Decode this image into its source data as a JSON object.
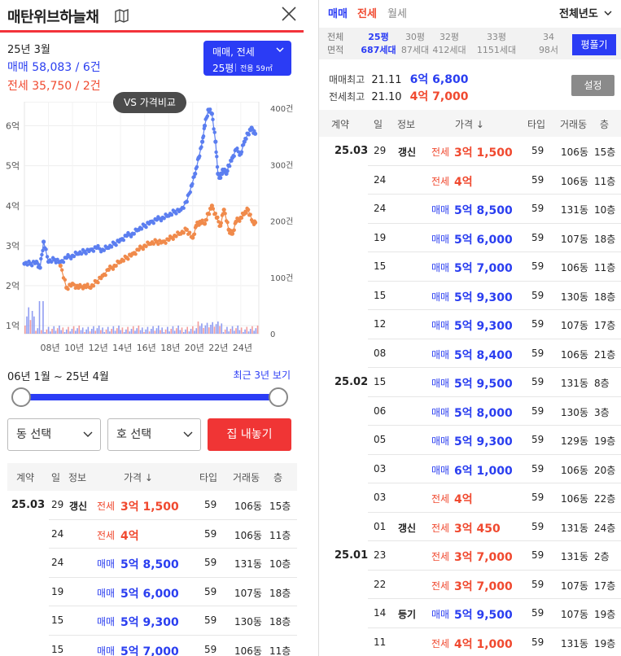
{
  "header": {
    "title": "매탄위브하늘채"
  },
  "summary": {
    "year_month": "25년 3월",
    "sale": "매매 58,083 / 6건",
    "rent": "전세 35,750 / 2건"
  },
  "selector": {
    "type": "매매, 전세",
    "pyeong": "25평",
    "area": "전용 59㎡"
  },
  "compare_button": "VS 가격비교",
  "chart_data": {
    "type": "line",
    "x_ticks": [
      "08년",
      "10년",
      "12년",
      "14년",
      "16년",
      "18년",
      "20년",
      "22년",
      "24년"
    ],
    "y_ticks": [
      "1억",
      "2억",
      "3억",
      "4억",
      "5억",
      "6억"
    ],
    "y2_ticks": [
      "0",
      "100건",
      "200건",
      "300건",
      "400건"
    ],
    "ylim": [
      0.8,
      6.6
    ],
    "y2lim": [
      0,
      400
    ],
    "series": [
      {
        "name": "매매",
        "color": "#5b7ef0",
        "x": [
          2006.0,
          2006.5,
          2007.0,
          2007.3,
          2007.6,
          2008.0,
          2008.5,
          2009.0,
          2009.5,
          2010.0,
          2010.5,
          2011.0,
          2011.5,
          2012.0,
          2012.5,
          2013.0,
          2013.5,
          2014.0,
          2014.5,
          2015.0,
          2015.5,
          2016.0,
          2016.5,
          2017.0,
          2017.5,
          2018.0,
          2018.5,
          2019.0,
          2019.5,
          2019.9,
          2020.2,
          2020.5,
          2020.8,
          2021.0,
          2021.3,
          2021.6,
          2021.9,
          2022.1,
          2022.3,
          2022.5,
          2022.8,
          2023.0,
          2023.3,
          2023.6,
          2024.0,
          2024.3,
          2024.6,
          2024.9,
          2025.2
        ],
        "y": [
          2.55,
          2.55,
          2.6,
          2.45,
          3.1,
          2.6,
          2.65,
          2.6,
          2.7,
          2.75,
          2.8,
          2.85,
          2.9,
          2.95,
          2.9,
          2.95,
          3.05,
          3.15,
          3.25,
          3.3,
          3.4,
          3.5,
          3.6,
          3.65,
          3.7,
          3.75,
          3.85,
          3.9,
          4.1,
          4.5,
          4.8,
          5.2,
          5.6,
          6.0,
          6.4,
          6.3,
          5.6,
          4.8,
          4.7,
          4.9,
          4.8,
          5.0,
          5.2,
          5.4,
          5.3,
          5.6,
          5.8,
          5.95,
          5.8
        ]
      },
      {
        "name": "전세",
        "color": "#f08a4b",
        "x": [
          2009.0,
          2009.5,
          2010.0,
          2010.5,
          2011.0,
          2011.5,
          2012.0,
          2012.5,
          2013.0,
          2013.5,
          2014.0,
          2014.5,
          2015.0,
          2015.5,
          2016.0,
          2016.5,
          2017.0,
          2017.5,
          2018.0,
          2018.5,
          2019.0,
          2019.5,
          2020.0,
          2020.3,
          2020.6,
          2021.0,
          2021.3,
          2021.6,
          2022.0,
          2022.3,
          2022.6,
          2023.0,
          2023.3,
          2023.6,
          2024.0,
          2024.3,
          2024.6,
          2025.0,
          2025.2
        ],
        "y": [
          2.5,
          1.95,
          2.05,
          1.95,
          2.0,
          1.95,
          2.1,
          2.25,
          2.4,
          2.5,
          2.6,
          2.7,
          2.8,
          2.9,
          3.0,
          3.05,
          3.1,
          3.1,
          3.15,
          3.25,
          3.3,
          3.4,
          3.2,
          3.5,
          3.6,
          3.55,
          3.8,
          4.0,
          3.7,
          3.5,
          3.9,
          3.4,
          3.3,
          3.6,
          3.7,
          3.8,
          3.9,
          3.6,
          3.58
        ]
      }
    ]
  },
  "range": {
    "label": "06년 1월 ~ 25년 4월",
    "recent": "최근 3년 보기"
  },
  "filters": {
    "dong": "동 선택",
    "ho": "호 선택",
    "list_btn": "집 내놓기"
  },
  "table_headers": {
    "contract": "계약",
    "day": "일",
    "info": "정보",
    "price": "가격 ↓",
    "type": "타입",
    "dong": "거래동",
    "floor": "층"
  },
  "left_rows": [
    {
      "month": "25.03",
      "day": "29",
      "info": "갱신",
      "kind": "전세",
      "price": "3억 1,500",
      "type": "59",
      "dong": "106동",
      "floor": "15층"
    },
    {
      "month": "",
      "day": "24",
      "info": "",
      "kind": "전세",
      "price": "4억",
      "type": "59",
      "dong": "106동",
      "floor": "11층"
    },
    {
      "month": "",
      "day": "24",
      "info": "",
      "kind": "매매",
      "price": "5억 8,500",
      "type": "59",
      "dong": "131동",
      "floor": "10층"
    },
    {
      "month": "",
      "day": "19",
      "info": "",
      "kind": "매매",
      "price": "5억 6,000",
      "type": "59",
      "dong": "107동",
      "floor": "18층"
    },
    {
      "month": "",
      "day": "15",
      "info": "",
      "kind": "매매",
      "price": "5억 9,300",
      "type": "59",
      "dong": "130동",
      "floor": "18층"
    },
    {
      "month": "",
      "day": "15",
      "info": "",
      "kind": "매매",
      "price": "5억 7,000",
      "type": "59",
      "dong": "106동",
      "floor": "11층"
    }
  ],
  "right": {
    "tabs": [
      "매매",
      "전세",
      "월세"
    ],
    "year_filter": "전체년도",
    "info_labels": [
      "전체",
      "면적"
    ],
    "info_cols": [
      {
        "top": "25평",
        "bottom": "687세대",
        "active": true
      },
      {
        "top": "30평",
        "bottom": "87세대",
        "active": false
      },
      {
        "top": "32평",
        "bottom": "412세대",
        "active": false
      },
      {
        "top": "33평",
        "bottom": "1151세대",
        "active": false
      },
      {
        "top": "34",
        "bottom": "98서",
        "active": false
      }
    ],
    "pyeong_btn": "평풀기",
    "sale_max_label": "매매최고",
    "sale_max_date": "21.11",
    "sale_max_price": "6억 6,800",
    "rent_max_label": "전세최고",
    "rent_max_date": "21.10",
    "rent_max_price": "4억 7,000",
    "settings_btn": "설정",
    "rows": [
      {
        "month": "25.03",
        "day": "29",
        "info": "갱신",
        "kind": "전세",
        "price": "3억 1,500",
        "type": "59",
        "dong": "106동",
        "floor": "15층"
      },
      {
        "month": "",
        "day": "24",
        "info": "",
        "kind": "전세",
        "price": "4억",
        "type": "59",
        "dong": "106동",
        "floor": "11층"
      },
      {
        "month": "",
        "day": "24",
        "info": "",
        "kind": "매매",
        "price": "5억 8,500",
        "type": "59",
        "dong": "131동",
        "floor": "10층"
      },
      {
        "month": "",
        "day": "19",
        "info": "",
        "kind": "매매",
        "price": "5억 6,000",
        "type": "59",
        "dong": "107동",
        "floor": "18층"
      },
      {
        "month": "",
        "day": "15",
        "info": "",
        "kind": "매매",
        "price": "5억 7,000",
        "type": "59",
        "dong": "106동",
        "floor": "11층"
      },
      {
        "month": "",
        "day": "15",
        "info": "",
        "kind": "매매",
        "price": "5억 9,300",
        "type": "59",
        "dong": "130동",
        "floor": "18층"
      },
      {
        "month": "",
        "day": "12",
        "info": "",
        "kind": "매매",
        "price": "5억 9,300",
        "type": "59",
        "dong": "107동",
        "floor": "17층"
      },
      {
        "month": "",
        "day": "08",
        "info": "",
        "kind": "매매",
        "price": "5억 8,400",
        "type": "59",
        "dong": "106동",
        "floor": "21층"
      },
      {
        "month": "25.02",
        "day": "15",
        "info": "",
        "kind": "매매",
        "price": "5억 9,500",
        "type": "59",
        "dong": "131동",
        "floor": "8층"
      },
      {
        "month": "",
        "day": "06",
        "info": "",
        "kind": "매매",
        "price": "5억 8,000",
        "type": "59",
        "dong": "130동",
        "floor": "3층"
      },
      {
        "month": "",
        "day": "05",
        "info": "",
        "kind": "매매",
        "price": "5억 9,300",
        "type": "59",
        "dong": "129동",
        "floor": "19층"
      },
      {
        "month": "",
        "day": "03",
        "info": "",
        "kind": "매매",
        "price": "6억 1,000",
        "type": "59",
        "dong": "106동",
        "floor": "20층"
      },
      {
        "month": "",
        "day": "03",
        "info": "",
        "kind": "전세",
        "price": "4억",
        "type": "59",
        "dong": "106동",
        "floor": "22층"
      },
      {
        "month": "",
        "day": "01",
        "info": "갱신",
        "kind": "전세",
        "price": "3억 450",
        "type": "59",
        "dong": "131동",
        "floor": "24층"
      },
      {
        "month": "25.01",
        "day": "23",
        "info": "",
        "kind": "전세",
        "price": "3억 7,000",
        "type": "59",
        "dong": "131동",
        "floor": "2층"
      },
      {
        "month": "",
        "day": "22",
        "info": "",
        "kind": "전세",
        "price": "3억 7,000",
        "type": "59",
        "dong": "107동",
        "floor": "17층"
      },
      {
        "month": "",
        "day": "14",
        "info": "등기",
        "kind": "매매",
        "price": "5억 9,500",
        "type": "59",
        "dong": "107동",
        "floor": "19층"
      },
      {
        "month": "",
        "day": "11",
        "info": "",
        "kind": "전세",
        "price": "4억 1,000",
        "type": "59",
        "dong": "131동",
        "floor": "19층"
      }
    ]
  }
}
